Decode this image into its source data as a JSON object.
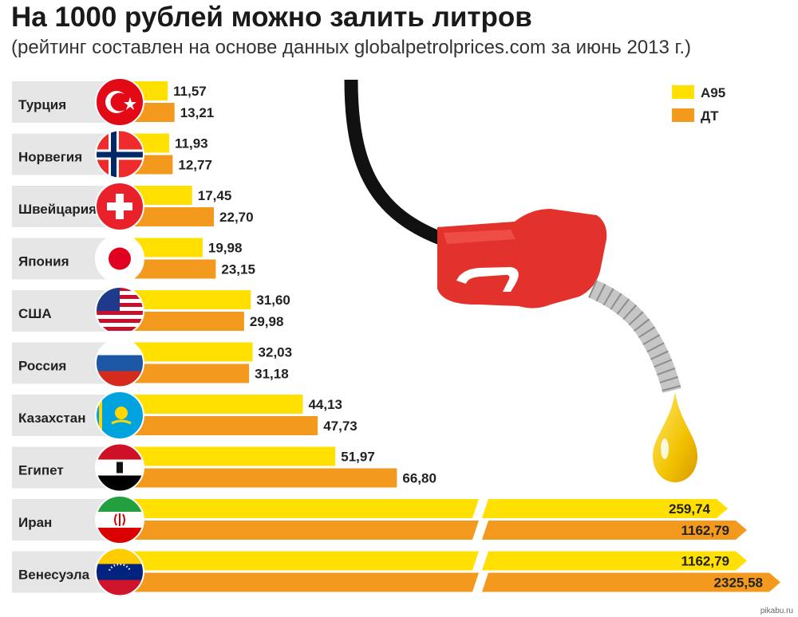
{
  "title": "На 1000 рублей можно залить литров",
  "subtitle": "(рейтинг составлен на основе данных globalpetrolprices.com за июнь 2013 г.)",
  "watermark": "pikabu.ru",
  "colors": {
    "a95": "#ffe000",
    "dt": "#f39a1e",
    "label_bg": "#e6e6e6"
  },
  "chart_data": {
    "type": "bar",
    "categories": [
      "Турция",
      "Норвегия",
      "Швейцария",
      "Япония",
      "США",
      "Россия",
      "Казахстан",
      "Египет",
      "Иран",
      "Венесуэла"
    ],
    "series": [
      {
        "name": "А95",
        "values": [
          11.57,
          11.93,
          17.45,
          19.98,
          31.6,
          32.03,
          44.13,
          51.97,
          259.74,
          1162.79
        ],
        "labels": [
          "11,57",
          "11,93",
          "17,45",
          "19,98",
          "31,60",
          "32,03",
          "44,13",
          "51,97",
          "259,74",
          "1162,79"
        ]
      },
      {
        "name": "ДТ",
        "values": [
          13.21,
          12.77,
          22.7,
          23.15,
          29.98,
          31.18,
          47.73,
          66.8,
          1162.79,
          2325.58
        ],
        "labels": [
          "13,21",
          "12,77",
          "22,70",
          "23,15",
          "29,98",
          "31,18",
          "47,73",
          "66,80",
          "1162,79",
          "2325,58"
        ]
      }
    ],
    "flags": [
      "turkey-flag-icon",
      "norway-flag-icon",
      "switzerland-flag-icon",
      "japan-flag-icon",
      "usa-flag-icon",
      "russia-flag-icon",
      "kazakhstan-flag-icon",
      "egypt-flag-icon",
      "iran-flag-icon",
      "venezuela-flag-icon"
    ],
    "broken_axis_from": 66.8,
    "legend_position": "top-right"
  }
}
